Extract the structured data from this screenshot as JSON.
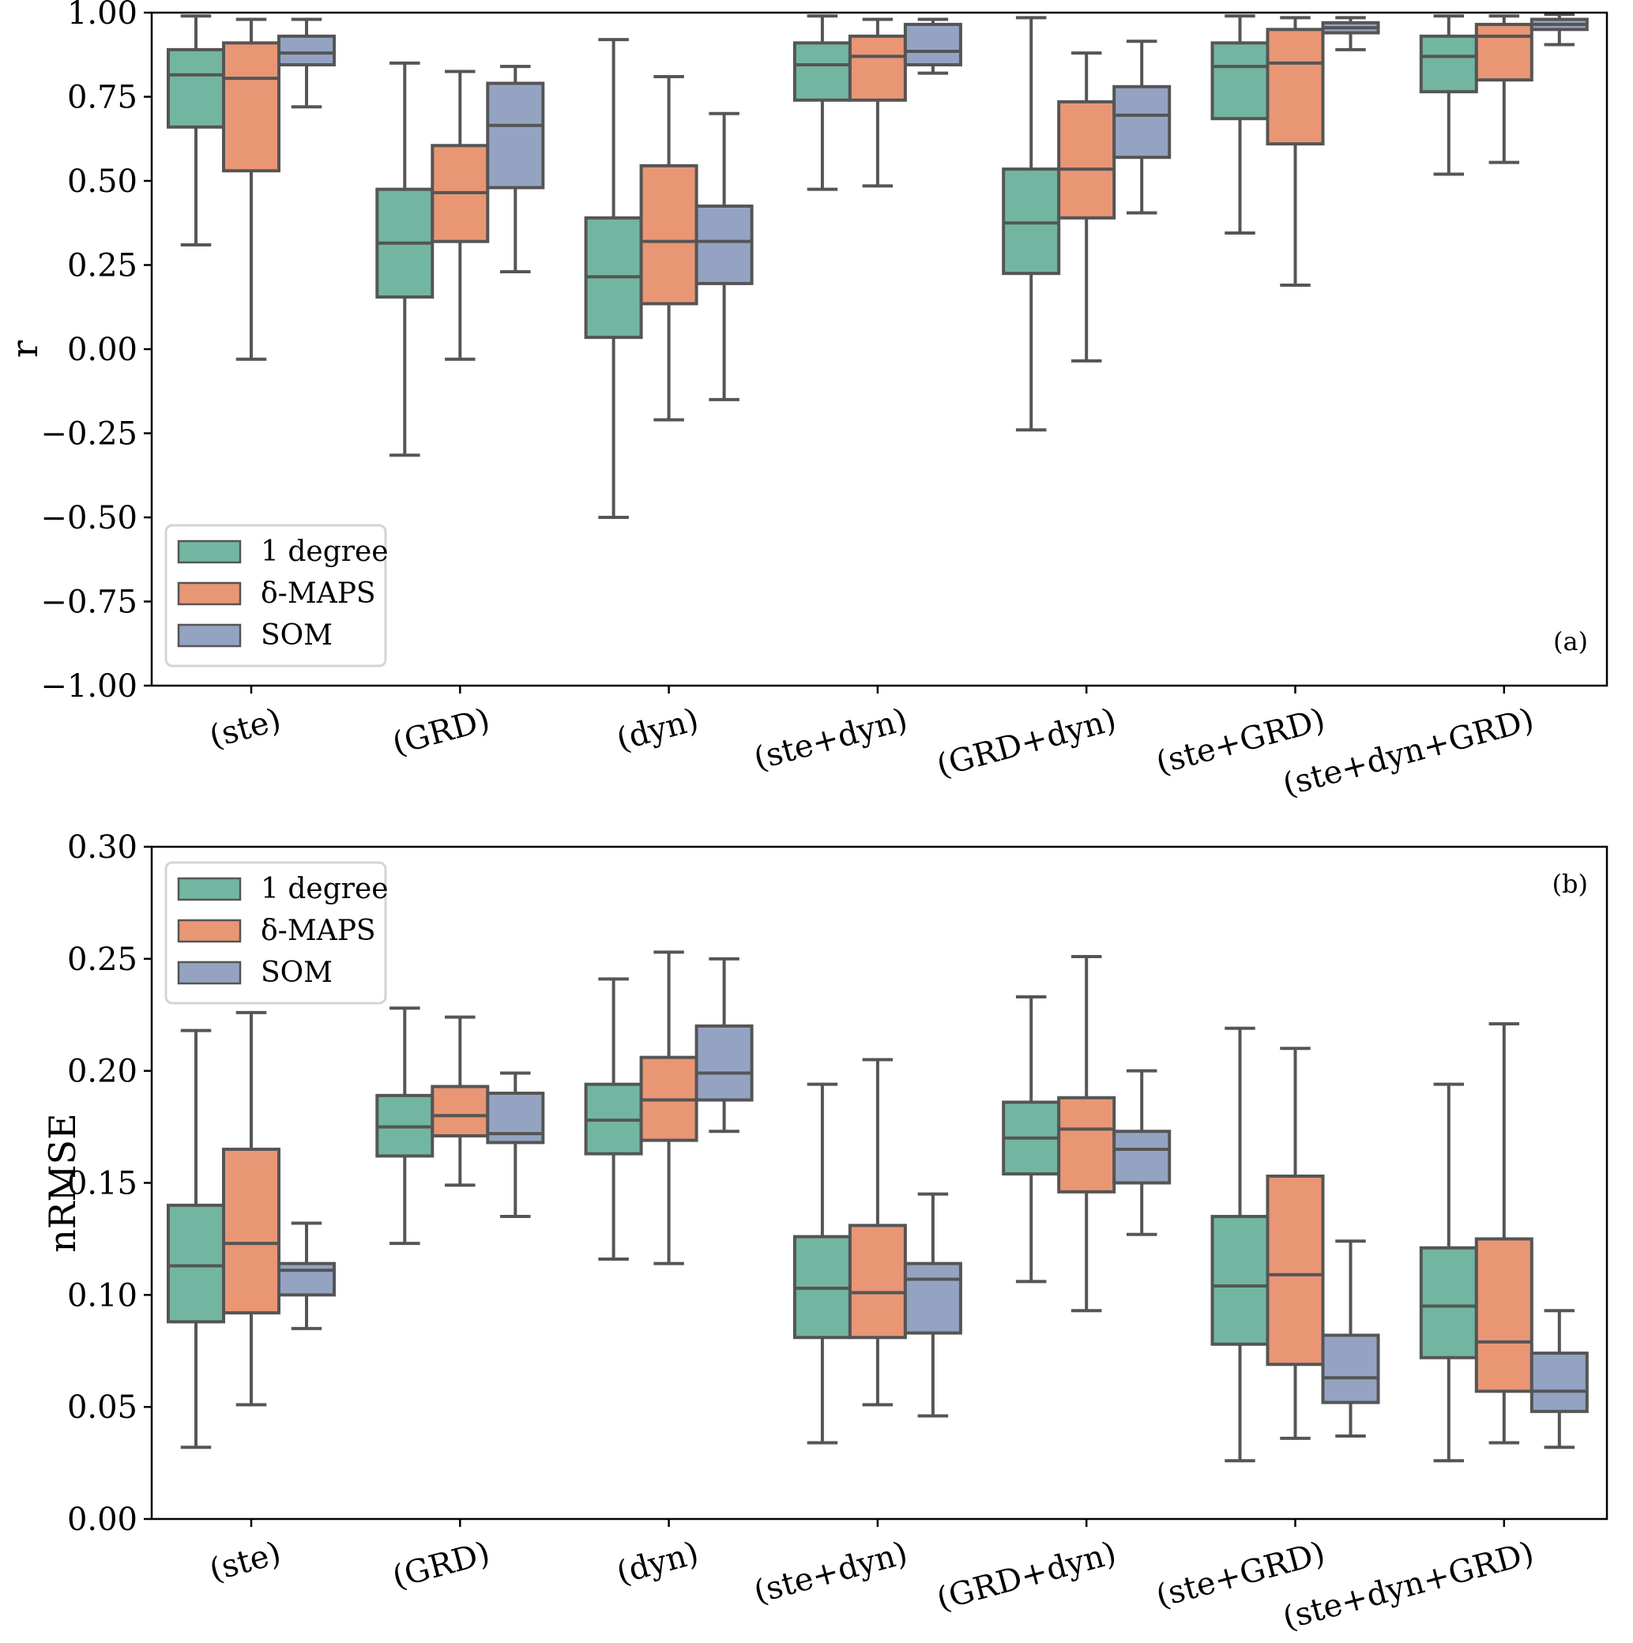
{
  "figure": {
    "legend_entries": [
      {
        "label": "1 degree",
        "color": "#72b6a1"
      },
      {
        "label": "δ-MAPS",
        "color": "#e99675"
      },
      {
        "label": "SOM",
        "color": "#95a3c3"
      }
    ],
    "box_edge_color": "#555555"
  },
  "chart_data": [
    {
      "type": "box",
      "panel_label": "(a)",
      "title": "",
      "xlabel": "",
      "ylabel": "r",
      "ylim": [
        -1.0,
        1.0
      ],
      "yticks": [
        "−1.00",
        "−0.75",
        "−0.50",
        "−0.25",
        "0.00",
        "0.25",
        "0.50",
        "0.75",
        "1.00"
      ],
      "ytick_values": [
        -1.0,
        -0.75,
        -0.5,
        -0.25,
        0.0,
        0.25,
        0.5,
        0.75,
        1.0
      ],
      "categories": [
        "(ste)",
        "(GRD)",
        "(dyn)",
        "(ste+dyn)",
        "(GRD+dyn)",
        "(ste+GRD)",
        "(ste+dyn+GRD)"
      ],
      "legend": "lower-left",
      "grid": false,
      "series": [
        {
          "name": "1 degree",
          "boxes": [
            {
              "whislo": 0.31,
              "q1": 0.66,
              "med": 0.815,
              "q3": 0.89,
              "whishi": 0.99
            },
            {
              "whislo": -0.315,
              "q1": 0.155,
              "med": 0.315,
              "q3": 0.475,
              "whishi": 0.85
            },
            {
              "whislo": -0.5,
              "q1": 0.035,
              "med": 0.215,
              "q3": 0.39,
              "whishi": 0.92
            },
            {
              "whislo": 0.475,
              "q1": 0.74,
              "med": 0.845,
              "q3": 0.91,
              "whishi": 0.99
            },
            {
              "whislo": -0.24,
              "q1": 0.225,
              "med": 0.375,
              "q3": 0.535,
              "whishi": 0.985
            },
            {
              "whislo": 0.345,
              "q1": 0.685,
              "med": 0.84,
              "q3": 0.91,
              "whishi": 0.99
            },
            {
              "whislo": 0.52,
              "q1": 0.765,
              "med": 0.87,
              "q3": 0.93,
              "whishi": 0.99
            }
          ]
        },
        {
          "name": "δ-MAPS",
          "boxes": [
            {
              "whislo": -0.03,
              "q1": 0.53,
              "med": 0.805,
              "q3": 0.91,
              "whishi": 0.98
            },
            {
              "whislo": -0.03,
              "q1": 0.32,
              "med": 0.465,
              "q3": 0.605,
              "whishi": 0.825
            },
            {
              "whislo": -0.21,
              "q1": 0.135,
              "med": 0.32,
              "q3": 0.545,
              "whishi": 0.81
            },
            {
              "whislo": 0.485,
              "q1": 0.74,
              "med": 0.87,
              "q3": 0.93,
              "whishi": 0.98
            },
            {
              "whislo": -0.035,
              "q1": 0.39,
              "med": 0.535,
              "q3": 0.735,
              "whishi": 0.88
            },
            {
              "whislo": 0.19,
              "q1": 0.61,
              "med": 0.85,
              "q3": 0.95,
              "whishi": 0.985
            },
            {
              "whislo": 0.555,
              "q1": 0.8,
              "med": 0.93,
              "q3": 0.965,
              "whishi": 0.99
            }
          ]
        },
        {
          "name": "SOM",
          "boxes": [
            {
              "whislo": 0.72,
              "q1": 0.845,
              "med": 0.88,
              "q3": 0.93,
              "whishi": 0.98
            },
            {
              "whislo": 0.23,
              "q1": 0.48,
              "med": 0.665,
              "q3": 0.79,
              "whishi": 0.84
            },
            {
              "whislo": -0.15,
              "q1": 0.195,
              "med": 0.32,
              "q3": 0.425,
              "whishi": 0.7
            },
            {
              "whislo": 0.82,
              "q1": 0.845,
              "med": 0.885,
              "q3": 0.965,
              "whishi": 0.98
            },
            {
              "whislo": 0.405,
              "q1": 0.57,
              "med": 0.695,
              "q3": 0.78,
              "whishi": 0.915
            },
            {
              "whislo": 0.89,
              "q1": 0.94,
              "med": 0.955,
              "q3": 0.97,
              "whishi": 0.985
            },
            {
              "whislo": 0.905,
              "q1": 0.95,
              "med": 0.965,
              "q3": 0.98,
              "whishi": 0.995
            }
          ]
        }
      ]
    },
    {
      "type": "box",
      "panel_label": "(b)",
      "title": "",
      "xlabel": "",
      "ylabel": "nRMSE",
      "ylim": [
        0.0,
        0.3
      ],
      "yticks": [
        "0.00",
        "0.05",
        "0.10",
        "0.15",
        "0.20",
        "0.25",
        "0.30"
      ],
      "ytick_values": [
        0.0,
        0.05,
        0.1,
        0.15,
        0.2,
        0.25,
        0.3
      ],
      "categories": [
        "(ste)",
        "(GRD)",
        "(dyn)",
        "(ste+dyn)",
        "(GRD+dyn)",
        "(ste+GRD)",
        "(ste+dyn+GRD)"
      ],
      "legend": "upper-left",
      "grid": false,
      "series": [
        {
          "name": "1 degree",
          "boxes": [
            {
              "whislo": 0.032,
              "q1": 0.088,
              "med": 0.113,
              "q3": 0.14,
              "whishi": 0.218
            },
            {
              "whislo": 0.123,
              "q1": 0.162,
              "med": 0.175,
              "q3": 0.189,
              "whishi": 0.228
            },
            {
              "whislo": 0.116,
              "q1": 0.163,
              "med": 0.178,
              "q3": 0.194,
              "whishi": 0.241
            },
            {
              "whislo": 0.034,
              "q1": 0.081,
              "med": 0.103,
              "q3": 0.126,
              "whishi": 0.194
            },
            {
              "whislo": 0.106,
              "q1": 0.154,
              "med": 0.17,
              "q3": 0.186,
              "whishi": 0.233
            },
            {
              "whislo": 0.026,
              "q1": 0.078,
              "med": 0.104,
              "q3": 0.135,
              "whishi": 0.219
            },
            {
              "whislo": 0.026,
              "q1": 0.072,
              "med": 0.095,
              "q3": 0.121,
              "whishi": 0.194
            }
          ]
        },
        {
          "name": "δ-MAPS",
          "boxes": [
            {
              "whislo": 0.051,
              "q1": 0.092,
              "med": 0.123,
              "q3": 0.165,
              "whishi": 0.226
            },
            {
              "whislo": 0.149,
              "q1": 0.171,
              "med": 0.18,
              "q3": 0.193,
              "whishi": 0.224
            },
            {
              "whislo": 0.114,
              "q1": 0.169,
              "med": 0.187,
              "q3": 0.206,
              "whishi": 0.253
            },
            {
              "whislo": 0.051,
              "q1": 0.081,
              "med": 0.101,
              "q3": 0.131,
              "whishi": 0.205
            },
            {
              "whislo": 0.093,
              "q1": 0.146,
              "med": 0.174,
              "q3": 0.188,
              "whishi": 0.251
            },
            {
              "whislo": 0.036,
              "q1": 0.069,
              "med": 0.109,
              "q3": 0.153,
              "whishi": 0.21
            },
            {
              "whislo": 0.034,
              "q1": 0.057,
              "med": 0.079,
              "q3": 0.125,
              "whishi": 0.221
            }
          ]
        },
        {
          "name": "SOM",
          "boxes": [
            {
              "whislo": 0.085,
              "q1": 0.1,
              "med": 0.111,
              "q3": 0.114,
              "whishi": 0.132
            },
            {
              "whislo": 0.135,
              "q1": 0.168,
              "med": 0.172,
              "q3": 0.19,
              "whishi": 0.199
            },
            {
              "whislo": 0.173,
              "q1": 0.187,
              "med": 0.199,
              "q3": 0.22,
              "whishi": 0.25
            },
            {
              "whislo": 0.046,
              "q1": 0.083,
              "med": 0.107,
              "q3": 0.114,
              "whishi": 0.145
            },
            {
              "whislo": 0.127,
              "q1": 0.15,
              "med": 0.165,
              "q3": 0.173,
              "whishi": 0.2
            },
            {
              "whislo": 0.037,
              "q1": 0.052,
              "med": 0.063,
              "q3": 0.082,
              "whishi": 0.124
            },
            {
              "whislo": 0.032,
              "q1": 0.048,
              "med": 0.057,
              "q3": 0.074,
              "whishi": 0.093
            }
          ]
        }
      ]
    }
  ]
}
